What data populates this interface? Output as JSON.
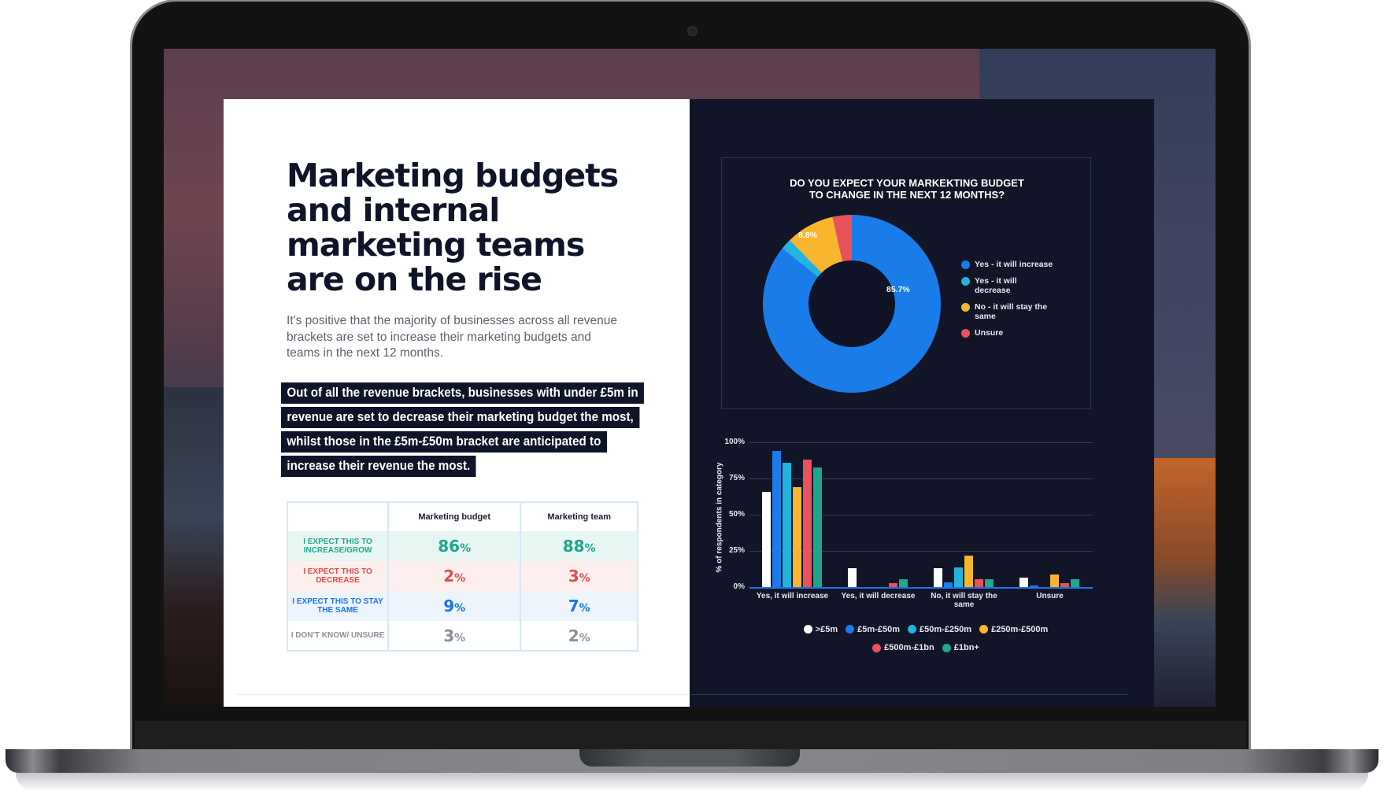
{
  "left_page": {
    "title": "Marketing budgets and internal marketing teams are on the rise",
    "intro": "It's positive that the majority of businesses across all revenue brackets are set to increase their marketing budgets and teams in the next 12 months.",
    "callout_lines": [
      "Out of all the revenue brackets, businesses with under £5m in",
      "revenue are set to decrease their marketing budget the most,",
      "whilst those in the £5m-£50m bracket are anticipated to",
      "increase their revenue the most."
    ],
    "table": {
      "headers": [
        "",
        "Marketing budget",
        "Marketing team"
      ],
      "rows": [
        {
          "label": "I EXPECT THIS TO INCREASE/GROW",
          "budget": "86",
          "team": "88",
          "color": "#22a58e"
        },
        {
          "label": "I EXPECT THIS TO DECREASE",
          "budget": "2",
          "team": "3",
          "color": "#e24b4b"
        },
        {
          "label": "I EXPECT THIS TO STAY THE SAME",
          "budget": "9",
          "team": "7",
          "color": "#1a73e8"
        },
        {
          "label": "I DON'T KNOW/ UNSURE",
          "budget": "3",
          "team": "2",
          "color": "#8c8f9a"
        }
      ],
      "pct_suffix": "%"
    }
  },
  "right_page": {
    "donut": {
      "title_line1": "DO YOU EXPECT YOUR MARKEKTING BUDGET",
      "title_line2": "TO CHANGE IN THE NEXT 12 MONTHS?",
      "labels": {
        "increase": "85.7%",
        "stay": "8.8%"
      },
      "legend": [
        {
          "label": "Yes - it will increase",
          "color": "#1a7ce8"
        },
        {
          "label": "Yes - it will decrease",
          "color": "#22b4de"
        },
        {
          "label": "No - it will stay the same",
          "color": "#f9b52e"
        },
        {
          "label": "Unsure",
          "color": "#e8525a"
        }
      ]
    },
    "bar": {
      "y_title": "% of respondents in category",
      "y_ticks": [
        "100%",
        "75%",
        "50%",
        "25%",
        "0%"
      ],
      "categories": [
        "Yes, it will increase",
        "Yes, it will decrease",
        "No, it will stay the same",
        "Unsure"
      ],
      "legend": [
        {
          "label": ">£5m",
          "color": "#ffffff"
        },
        {
          "label": "£5m-£50m",
          "color": "#1a7ce8"
        },
        {
          "label": "£50m-£250m",
          "color": "#22b4de"
        },
        {
          "label": "£250m-£500m",
          "color": "#f9b52e"
        },
        {
          "label": "£500m-£1bn",
          "color": "#e8525a"
        },
        {
          "label": "£1bn+",
          "color": "#22a58e"
        }
      ]
    }
  },
  "chart_data": [
    {
      "type": "pie",
      "title": "DO YOU EXPECT YOUR MARKEKTING BUDGET TO CHANGE IN THE NEXT 12 MONTHS?",
      "categories": [
        "Yes - it will increase",
        "Yes - it will decrease",
        "No - it will stay the same",
        "Unsure"
      ],
      "values": [
        85.7,
        2.0,
        8.8,
        3.5
      ],
      "data_labels": [
        "85.7%",
        "",
        "8.8%",
        ""
      ],
      "colors": [
        "#1a7ce8",
        "#22b4de",
        "#f9b52e",
        "#e8525a"
      ],
      "legend_position": "right",
      "donut": true
    },
    {
      "type": "bar",
      "title": "",
      "xlabel": "",
      "ylabel": "% of respondents in category",
      "ylim": [
        0,
        100
      ],
      "yticks": [
        0,
        25,
        50,
        75,
        100
      ],
      "grid": true,
      "legend_position": "bottom",
      "categories": [
        "Yes, it will increase",
        "Yes, it will decrease",
        "No, it will stay the same",
        "Unsure"
      ],
      "series": [
        {
          "name": ">£5m",
          "color": "#ffffff",
          "values": [
            66,
            13,
            13,
            6.5
          ]
        },
        {
          "name": "£5m-£50m",
          "color": "#1a7ce8",
          "values": [
            94,
            0,
            3.5,
            1
          ]
        },
        {
          "name": "£50m-£250m",
          "color": "#22b4de",
          "values": [
            86,
            0,
            13.5,
            0
          ]
        },
        {
          "name": "£250m-£500m",
          "color": "#f9b52e",
          "values": [
            69,
            0,
            21.5,
            8.5
          ]
        },
        {
          "name": "£500m-£1bn",
          "color": "#e8525a",
          "values": [
            88,
            2.5,
            5.5,
            2.5
          ]
        },
        {
          "name": "£1bn+",
          "color": "#22a58e",
          "values": [
            82.5,
            5.5,
            5.5,
            5.5
          ]
        }
      ]
    }
  ]
}
